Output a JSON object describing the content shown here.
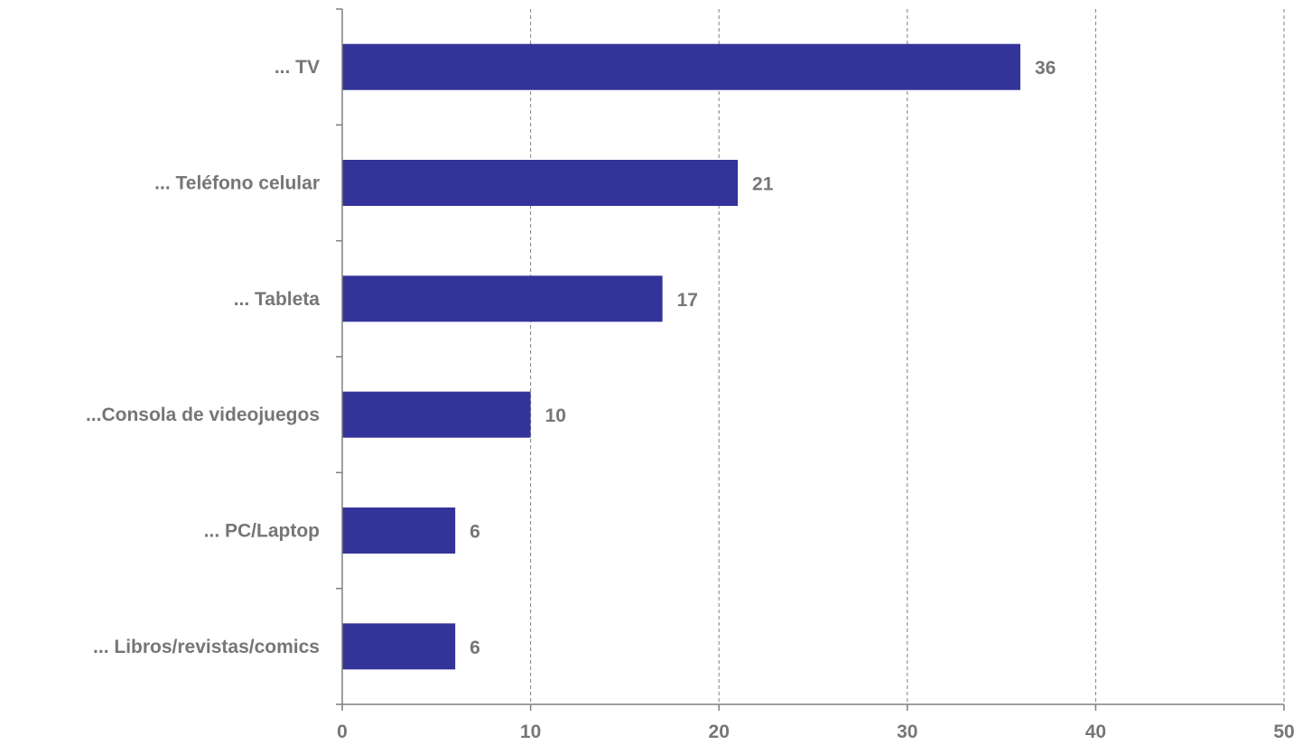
{
  "chart_data": {
    "type": "bar",
    "orientation": "horizontal",
    "categories": [
      "... TV",
      "... Teléfono celular",
      "... Tableta",
      "...Consola de videojuegos",
      "... PC/Laptop",
      "... Libros/revistas/comics"
    ],
    "values": [
      36,
      21,
      17,
      10,
      6,
      6
    ],
    "data_labels": [
      "36",
      "21",
      "17",
      "10",
      "6",
      "6"
    ],
    "xlim": [
      0,
      50
    ],
    "x_ticks": [
      0,
      10,
      20,
      30,
      40,
      50
    ],
    "x_tick_labels": [
      "0",
      "10",
      "20",
      "30",
      "40",
      "50"
    ],
    "title": "",
    "xlabel": "",
    "ylabel": "",
    "grid": "vertical dashed",
    "legend": "none"
  },
  "colors": {
    "bar": "#333399",
    "text": "#767676",
    "axis": "#808080",
    "grid": "#808080"
  }
}
